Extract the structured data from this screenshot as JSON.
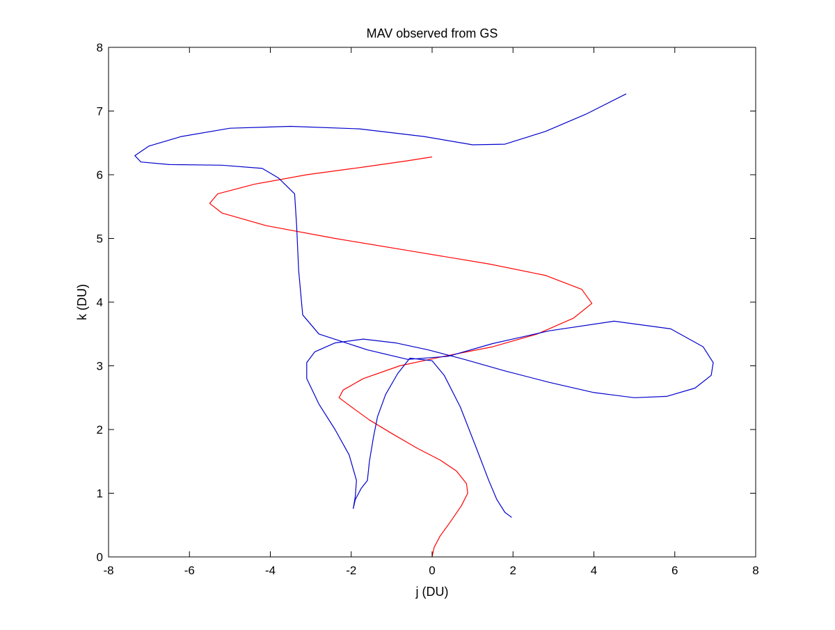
{
  "chart_data": {
    "type": "line",
    "title": "MAV observed from GS",
    "xlabel": "j (DU)",
    "ylabel": "k (DU)",
    "xlim": [
      -8,
      8
    ],
    "ylim": [
      0,
      8
    ],
    "x_ticks": [
      -8,
      -6,
      -4,
      -2,
      0,
      2,
      4,
      6,
      8
    ],
    "y_ticks": [
      0,
      1,
      2,
      3,
      4,
      5,
      6,
      7,
      8
    ],
    "x_tick_labels": [
      "-8",
      "-6",
      "-4",
      "-2",
      "0",
      "2",
      "4",
      "6",
      "8"
    ],
    "y_tick_labels": [
      "0",
      "1",
      "2",
      "3",
      "4",
      "5",
      "6",
      "7",
      "8"
    ],
    "grid": false,
    "legend": "none",
    "series": [
      {
        "color": "#ff0000",
        "points": [
          [
            0.0,
            0.0
          ],
          [
            0.05,
            0.15
          ],
          [
            0.2,
            0.33
          ],
          [
            0.45,
            0.55
          ],
          [
            0.72,
            0.8
          ],
          [
            0.88,
            1.0
          ],
          [
            0.85,
            1.15
          ],
          [
            0.6,
            1.35
          ],
          [
            0.2,
            1.52
          ],
          [
            -0.35,
            1.7
          ],
          [
            -0.95,
            1.92
          ],
          [
            -1.55,
            2.15
          ],
          [
            -2.05,
            2.38
          ],
          [
            -2.3,
            2.5
          ],
          [
            -2.2,
            2.62
          ],
          [
            -1.7,
            2.8
          ],
          [
            -0.8,
            3.0
          ],
          [
            0.3,
            3.15
          ],
          [
            1.5,
            3.3
          ],
          [
            2.6,
            3.5
          ],
          [
            3.5,
            3.75
          ],
          [
            3.95,
            3.98
          ],
          [
            3.7,
            4.2
          ],
          [
            2.8,
            4.42
          ],
          [
            1.4,
            4.6
          ],
          [
            -0.5,
            4.8
          ],
          [
            -2.4,
            5.0
          ],
          [
            -4.1,
            5.2
          ],
          [
            -5.2,
            5.4
          ],
          [
            -5.5,
            5.55
          ],
          [
            -5.3,
            5.7
          ],
          [
            -4.4,
            5.85
          ],
          [
            -3.1,
            6.0
          ],
          [
            -1.7,
            6.12
          ],
          [
            -0.6,
            6.22
          ],
          [
            0.0,
            6.28
          ]
        ]
      },
      {
        "color": "#0000cc",
        "points": [
          [
            1.97,
            0.62
          ],
          [
            1.8,
            0.7
          ],
          [
            1.6,
            0.9
          ],
          [
            1.4,
            1.2
          ],
          [
            1.1,
            1.7
          ],
          [
            0.7,
            2.35
          ],
          [
            0.3,
            2.85
          ],
          [
            0.0,
            3.08
          ],
          [
            -0.55,
            3.12
          ],
          [
            -0.85,
            2.88
          ],
          [
            -1.15,
            2.55
          ],
          [
            -1.35,
            2.2
          ],
          [
            -1.45,
            1.88
          ],
          [
            -1.55,
            1.5
          ],
          [
            -1.6,
            1.2
          ],
          [
            -1.75,
            1.08
          ],
          [
            -1.9,
            0.9
          ],
          [
            -1.95,
            0.76
          ],
          [
            -1.9,
            0.95
          ],
          [
            -1.87,
            1.2
          ],
          [
            -2.05,
            1.6
          ],
          [
            -2.4,
            2.0
          ],
          [
            -2.8,
            2.4
          ],
          [
            -3.1,
            2.8
          ],
          [
            -3.1,
            3.05
          ],
          [
            -2.9,
            3.22
          ],
          [
            -2.4,
            3.36
          ],
          [
            -1.7,
            3.42
          ],
          [
            -0.9,
            3.36
          ],
          [
            -0.1,
            3.25
          ],
          [
            0.8,
            3.1
          ],
          [
            1.8,
            2.92
          ],
          [
            2.9,
            2.74
          ],
          [
            4.0,
            2.58
          ],
          [
            5.0,
            2.5
          ],
          [
            5.8,
            2.52
          ],
          [
            6.5,
            2.65
          ],
          [
            6.9,
            2.85
          ],
          [
            6.95,
            3.05
          ],
          [
            6.7,
            3.3
          ],
          [
            5.9,
            3.58
          ],
          [
            4.5,
            3.7
          ],
          [
            2.9,
            3.55
          ],
          [
            1.5,
            3.35
          ],
          [
            0.4,
            3.15
          ],
          [
            -0.6,
            3.1
          ],
          [
            -1.6,
            3.25
          ],
          [
            -2.8,
            3.5
          ],
          [
            -3.2,
            3.8
          ],
          [
            -3.3,
            4.5
          ],
          [
            -3.35,
            5.2
          ],
          [
            -3.4,
            5.7
          ],
          [
            -3.8,
            5.95
          ],
          [
            -4.2,
            6.1
          ],
          [
            -5.2,
            6.15
          ],
          [
            -6.5,
            6.16
          ],
          [
            -7.2,
            6.2
          ],
          [
            -7.35,
            6.3
          ],
          [
            -7.0,
            6.45
          ],
          [
            -6.2,
            6.6
          ],
          [
            -5.0,
            6.73
          ],
          [
            -3.5,
            6.76
          ],
          [
            -1.8,
            6.72
          ],
          [
            -0.2,
            6.6
          ],
          [
            1.0,
            6.47
          ],
          [
            1.8,
            6.48
          ],
          [
            2.8,
            6.68
          ],
          [
            3.8,
            6.95
          ],
          [
            4.8,
            7.27
          ]
        ]
      }
    ]
  }
}
